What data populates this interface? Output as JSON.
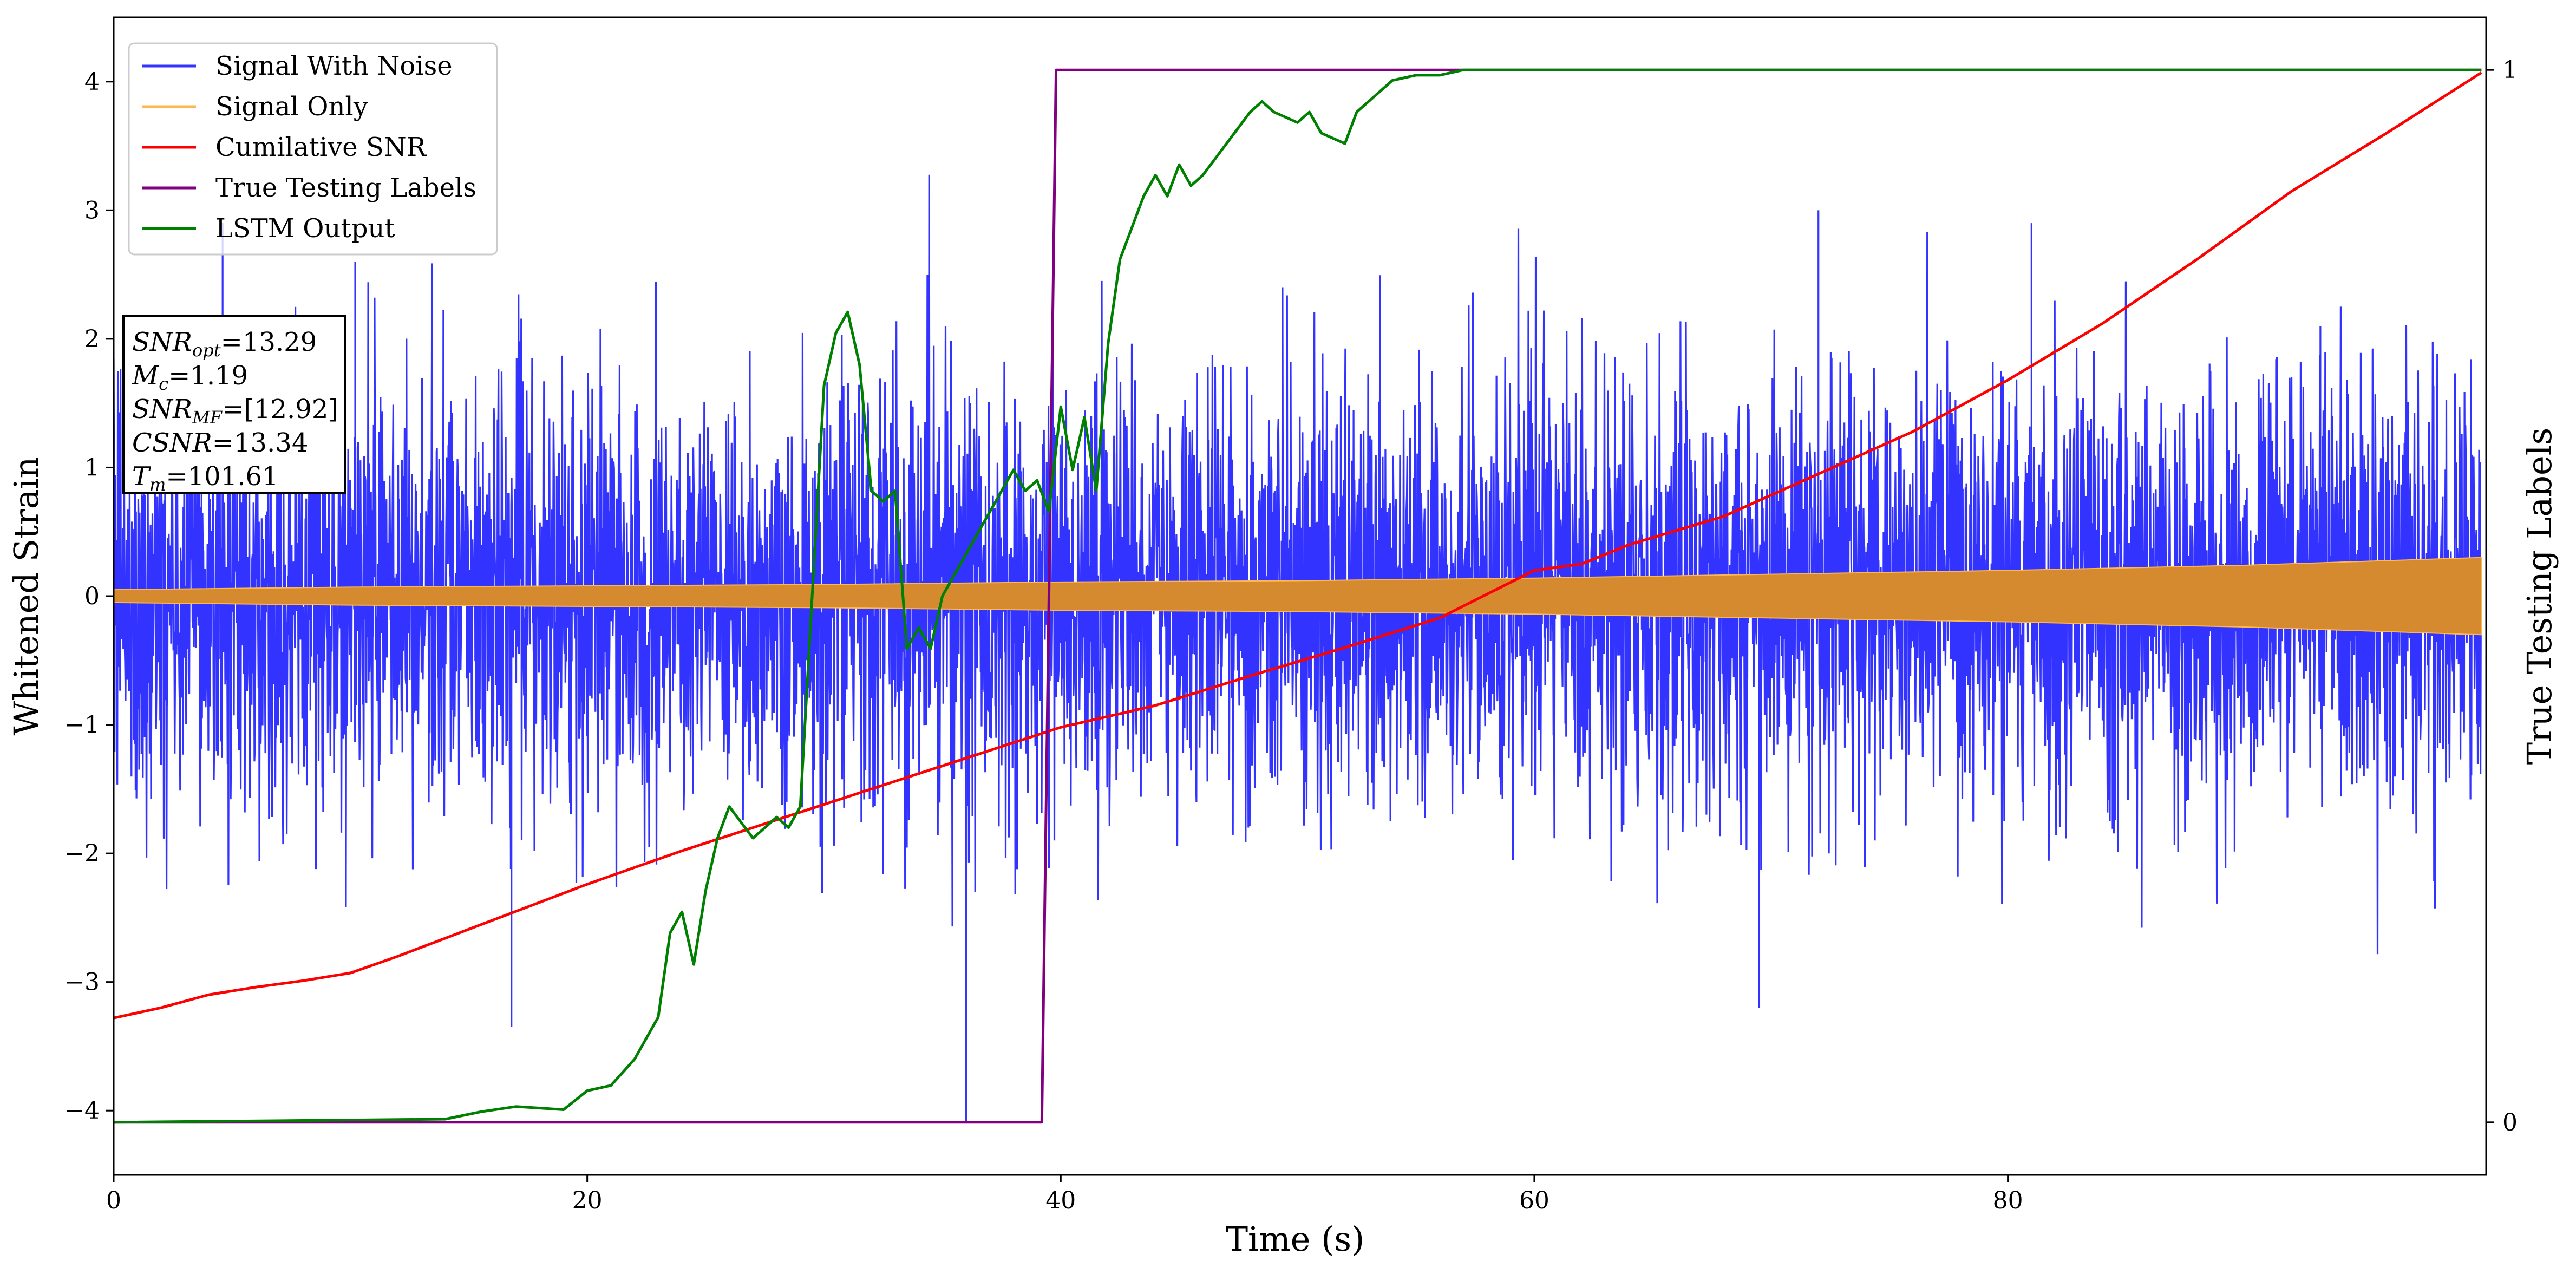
{
  "chart_data": {
    "type": "line",
    "xlabel": "Time (s)",
    "ylabel": "Whitened Strain",
    "y2label": "True Testing Labels",
    "xlim": [
      0,
      100.2
    ],
    "ylim": [
      -4.5,
      4.5
    ],
    "y2lim": [
      -0.05,
      1.05
    ],
    "xticks": [
      0,
      20,
      40,
      60,
      80
    ],
    "yticks": [
      -4,
      -3,
      -2,
      -1,
      0,
      1,
      2,
      3,
      4
    ],
    "y2ticks": [
      0,
      1
    ],
    "legend_position": "upper-left",
    "colors": {
      "signal_with_noise": "#3333ff",
      "signal_only": "#ffb84d",
      "signal_only_band": "#d68a2f",
      "cumulative_snr": "#ff0000",
      "true_labels": "#800080",
      "lstm_output": "#008000"
    },
    "series": [
      {
        "name": "Signal With Noise",
        "kind": "noise",
        "description_stats": {
          "typical_amplitude": 1.25,
          "peak_amplitude": 3.35,
          "min_value": -4.08
        },
        "notable_peaks": [
          {
            "x": 4.6,
            "y": 2.9
          },
          {
            "x": 10.2,
            "y": 2.6
          },
          {
            "x": 16.8,
            "y": -3.35
          },
          {
            "x": 36.0,
            "y": -4.08
          },
          {
            "x": 69.5,
            "y": -3.2
          },
          {
            "x": 72.0,
            "y": 3.0
          },
          {
            "x": 81.0,
            "y": 2.9
          },
          {
            "x": 93.2,
            "y": 2.1
          }
        ]
      },
      {
        "name": "Signal Only",
        "kind": "band",
        "envelope_x": [
          0,
          10,
          20,
          30,
          40,
          50,
          60,
          70,
          80,
          90,
          100
        ],
        "envelope_y": [
          0.05,
          0.07,
          0.08,
          0.09,
          0.11,
          0.12,
          0.14,
          0.17,
          0.2,
          0.24,
          0.3
        ]
      },
      {
        "name": "Cumilative SNR",
        "axis": "left",
        "x": [
          0,
          2,
          4,
          6,
          8,
          10,
          12,
          14,
          16,
          18,
          20,
          22,
          24,
          26,
          28,
          30,
          32,
          34,
          36,
          38,
          40,
          44,
          48,
          52,
          56,
          60,
          62,
          64,
          68,
          72,
          76,
          80,
          84,
          88,
          92,
          96,
          100
        ],
        "y": [
          -3.28,
          -3.2,
          -3.1,
          -3.04,
          -2.99,
          -2.93,
          -2.8,
          -2.66,
          -2.52,
          -2.38,
          -2.24,
          -2.11,
          -1.98,
          -1.86,
          -1.74,
          -1.62,
          -1.5,
          -1.38,
          -1.26,
          -1.14,
          -1.02,
          -0.85,
          -0.62,
          -0.4,
          -0.17,
          0.2,
          0.25,
          0.4,
          0.62,
          0.95,
          1.28,
          1.68,
          2.12,
          2.62,
          3.15,
          3.6,
          4.07
        ]
      },
      {
        "name": "True Testing Labels",
        "axis": "right",
        "x": [
          0,
          39.2,
          39.8,
          100
        ],
        "y": [
          0,
          0,
          1,
          1
        ]
      },
      {
        "name": "LSTM Output",
        "axis": "right",
        "x": [
          0,
          14,
          15.5,
          17,
          19,
          20,
          21,
          22,
          23,
          23.5,
          24,
          24.5,
          25,
          25.5,
          26,
          27,
          28,
          28.5,
          29,
          29.5,
          30,
          30.5,
          31,
          31.5,
          32,
          32.5,
          33,
          33.5,
          34,
          34.5,
          35,
          35.5,
          36,
          36.5,
          37,
          37.5,
          38,
          38.5,
          39,
          39.5,
          40,
          40.5,
          41,
          41.5,
          42,
          42.5,
          43,
          43.5,
          44,
          44.5,
          45,
          45.5,
          46,
          47,
          48,
          48.5,
          49,
          50,
          50.5,
          51,
          52,
          52.5,
          53.5,
          54,
          55,
          56,
          57,
          58,
          60,
          62,
          66,
          70,
          100
        ],
        "y": [
          0,
          0.003,
          0.01,
          0.015,
          0.012,
          0.03,
          0.035,
          0.06,
          0.1,
          0.18,
          0.2,
          0.15,
          0.22,
          0.27,
          0.3,
          0.27,
          0.29,
          0.28,
          0.3,
          0.5,
          0.7,
          0.75,
          0.77,
          0.72,
          0.6,
          0.59,
          0.6,
          0.45,
          0.47,
          0.45,
          0.5,
          0.52,
          0.54,
          0.56,
          0.58,
          0.6,
          0.62,
          0.6,
          0.61,
          0.58,
          0.68,
          0.62,
          0.67,
          0.6,
          0.74,
          0.82,
          0.85,
          0.88,
          0.9,
          0.88,
          0.91,
          0.89,
          0.9,
          0.93,
          0.96,
          0.97,
          0.96,
          0.95,
          0.96,
          0.94,
          0.93,
          0.96,
          0.98,
          0.99,
          0.995,
          0.995,
          1.0,
          1.0,
          1.0,
          1.0,
          1.0,
          1.0,
          1.0
        ]
      }
    ],
    "info_box": [
      {
        "pre": "SNR",
        "sub": "opt",
        "post": "=13.29"
      },
      {
        "pre": "M",
        "sub": "c",
        "post": "=1.19"
      },
      {
        "pre": "SNR",
        "sub": "MF",
        "post": "=[12.92]"
      },
      {
        "pre": "CSNR",
        "sub": "",
        "post": "=13.34"
      },
      {
        "pre": "T",
        "sub": "m",
        "post": "=101.61"
      }
    ]
  }
}
